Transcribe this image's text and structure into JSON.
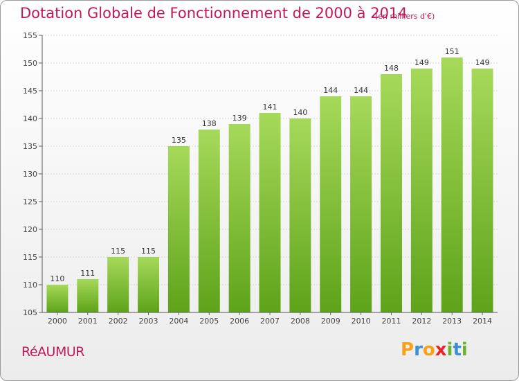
{
  "title": "Dotation Globale de Fonctionnement de 2000 à 2014",
  "subtitle": "(en milliers d'€)",
  "commune": "RéAUMUR",
  "logo": {
    "letters": [
      "P",
      "r",
      "o",
      "x",
      "i",
      "t",
      "i"
    ],
    "colors": [
      "#f7a11a",
      "#3a8fd8",
      "#f7a11a",
      "#e8232a",
      "#6ab42d",
      "#3a8fd8",
      "#6ab42d"
    ]
  },
  "colors": {
    "bar_light": "#a6d95a",
    "bar_dark": "#5ea31a",
    "text": "#c2185b",
    "grid": "#d8d8d8"
  },
  "chart_data": {
    "type": "bar",
    "categories": [
      "2000",
      "2001",
      "2002",
      "2003",
      "2004",
      "2005",
      "2006",
      "2007",
      "2008",
      "2009",
      "2010",
      "2011",
      "2012",
      "2013",
      "2014"
    ],
    "values": [
      110,
      111,
      115,
      115,
      135,
      138,
      139,
      141,
      140,
      144,
      144,
      148,
      149,
      151,
      149
    ],
    "ylim": [
      105,
      155
    ],
    "yticks": [
      105,
      110,
      115,
      120,
      125,
      130,
      135,
      140,
      145,
      150,
      155
    ],
    "grid": true,
    "title": "Dotation Globale de Fonctionnement de 2000 à 2014",
    "xlabel": "",
    "ylabel": ""
  }
}
